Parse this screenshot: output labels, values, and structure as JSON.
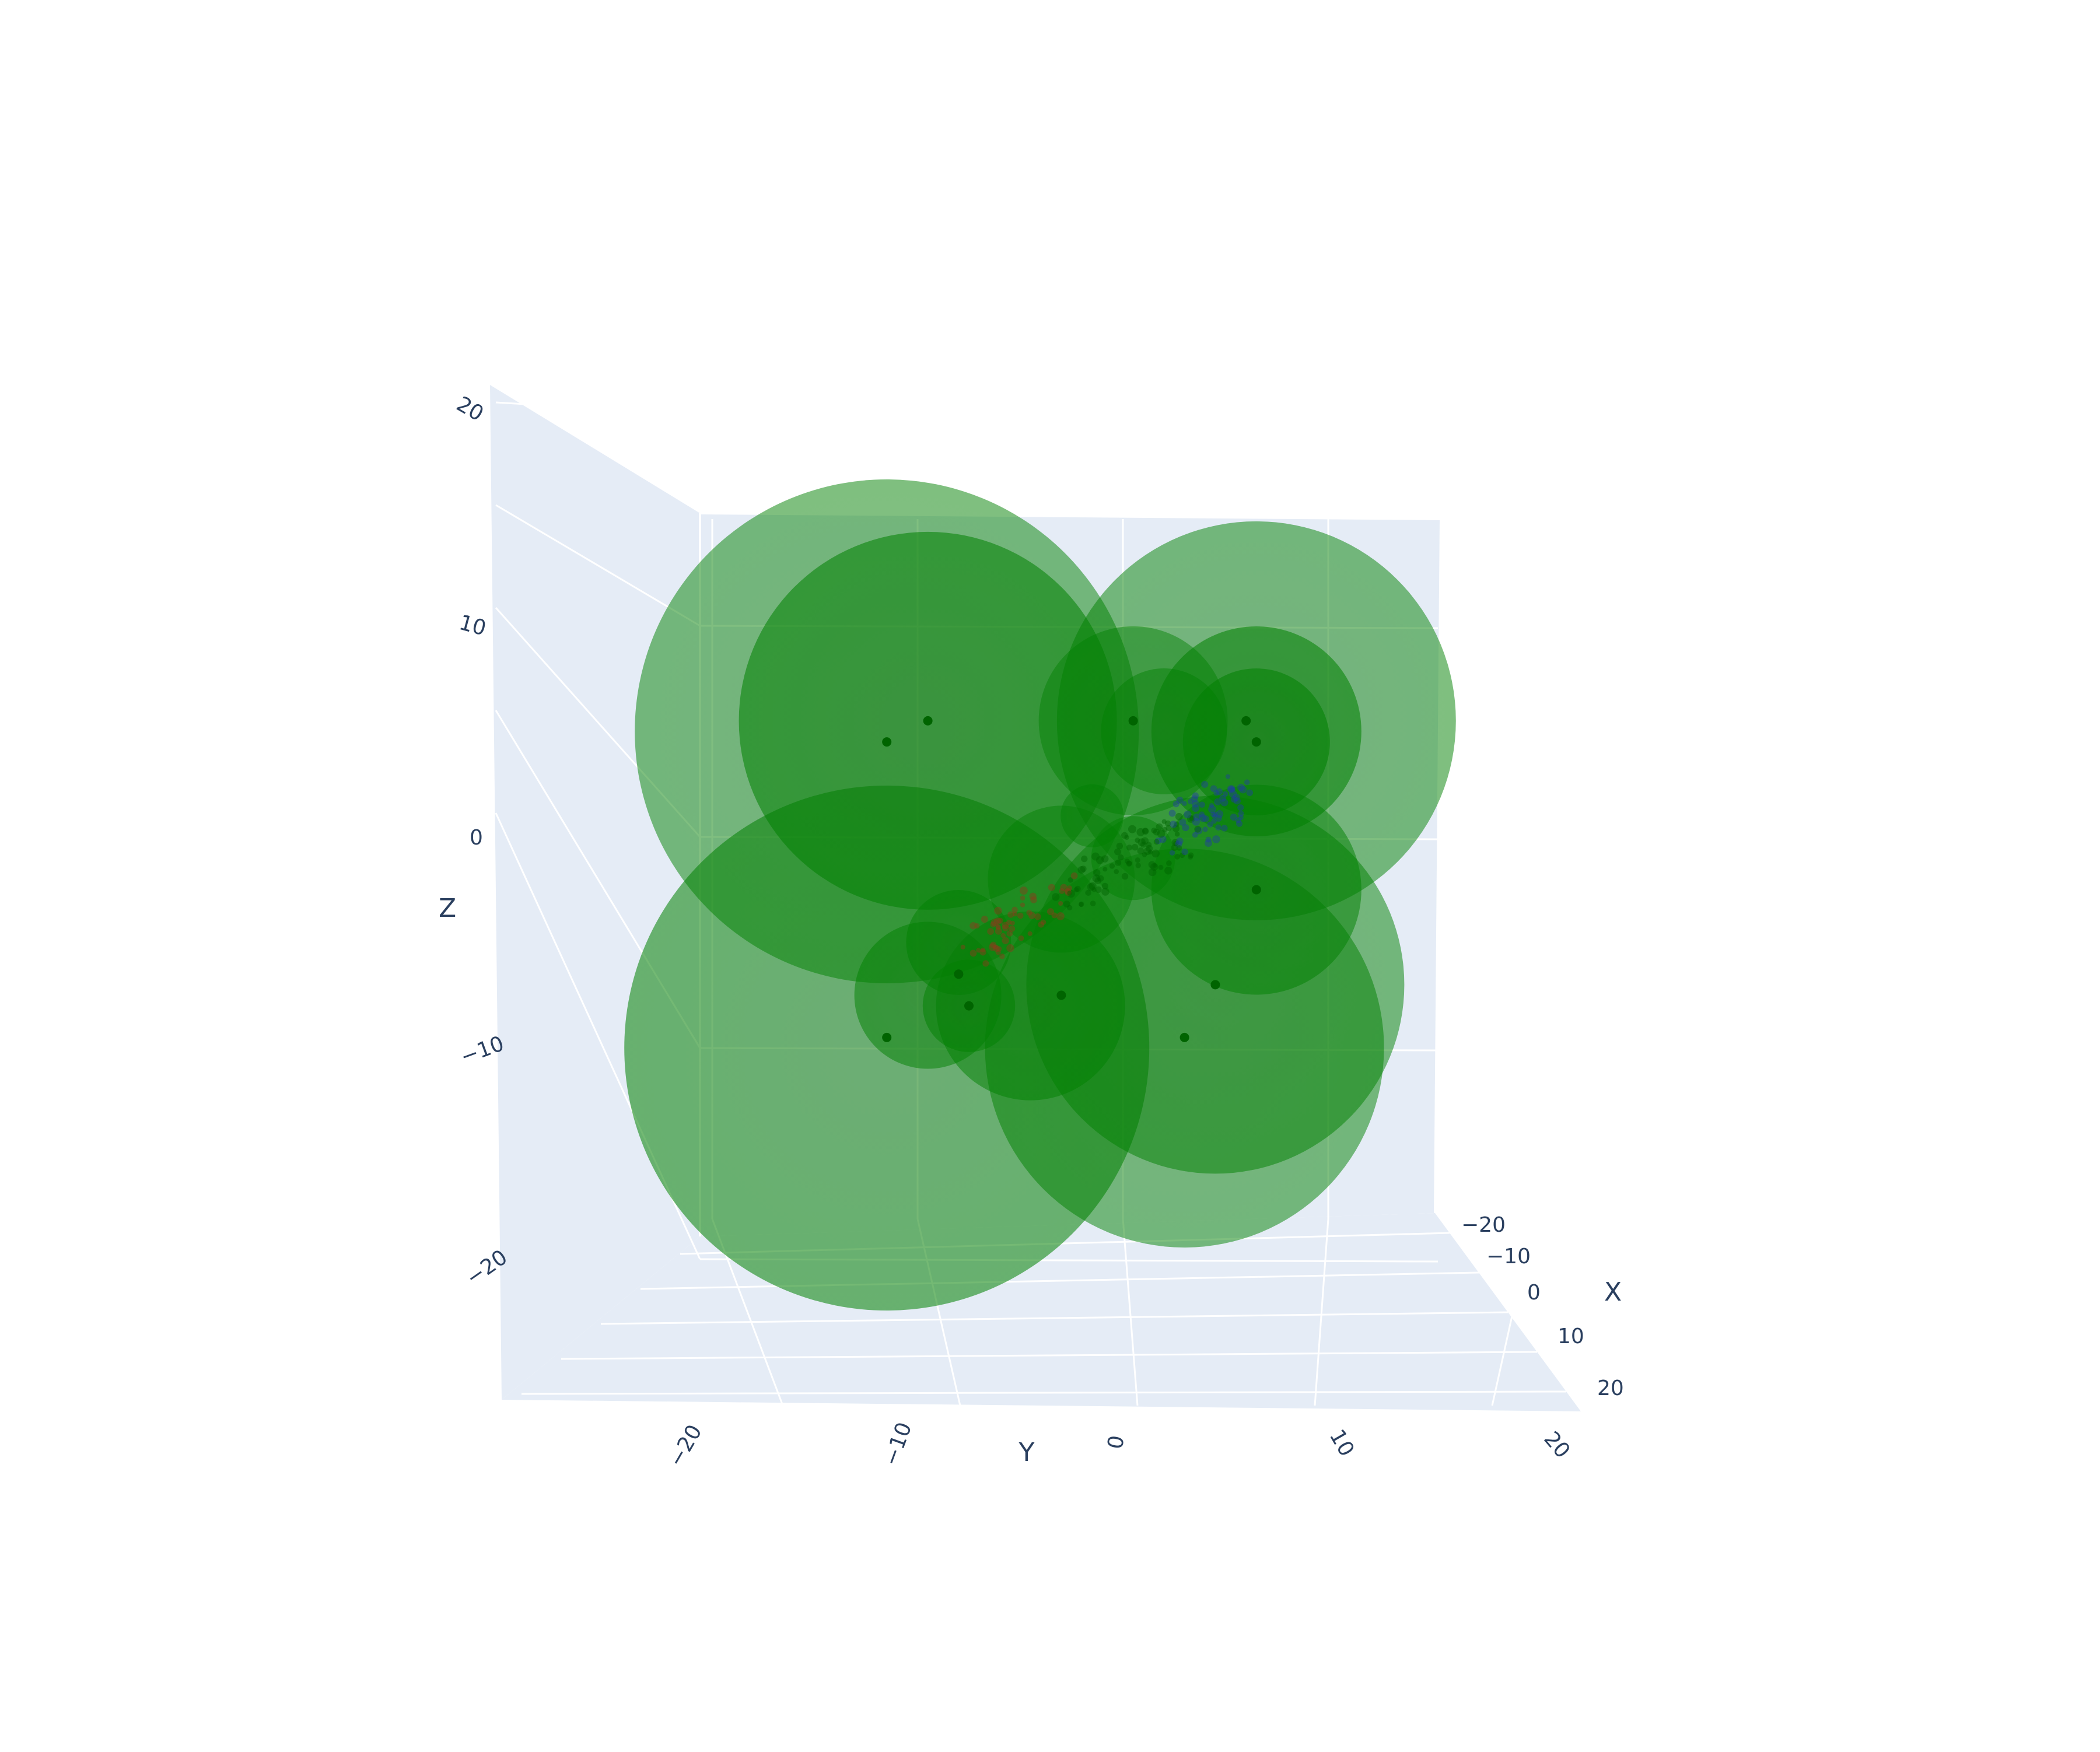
{
  "chart_data": {
    "type": "scatter",
    "mode": "3d",
    "title": "",
    "axes": {
      "x": {
        "label": "X",
        "range": [
          -25,
          25
        ],
        "ticks": [
          "−20",
          "−10",
          "0",
          "10",
          "20"
        ]
      },
      "y": {
        "label": "Y",
        "range": [
          -25,
          25
        ],
        "ticks": [
          "−20",
          "−10",
          "0",
          "10",
          "20"
        ]
      },
      "z": {
        "label": "Z",
        "range": [
          -25,
          25
        ],
        "ticks": [
          "20",
          "10",
          "0",
          "−10",
          "−20"
        ]
      }
    },
    "grid": true,
    "colors": {
      "pane": "#e5ecf6",
      "grid": "#ffffff",
      "text": "#2a3f5f",
      "sphere": "#008000",
      "point": "#006400",
      "cluster_red": "#8b3a1a",
      "cluster_blue": "#1f3fa0"
    },
    "spheres": [
      {
        "y": -11.5,
        "z": 5,
        "r": 12,
        "opacity": 0.5
      },
      {
        "y": -9.5,
        "z": 5.5,
        "r": 9,
        "opacity": 0.55
      },
      {
        "y": 6.5,
        "z": 5.5,
        "r": 9.5,
        "opacity": 0.5
      },
      {
        "y": 6.5,
        "z": 5,
        "r": 5,
        "opacity": 0.55
      },
      {
        "y": 6.5,
        "z": 4.5,
        "r": 3.5,
        "opacity": 0.55
      },
      {
        "y": 0.5,
        "z": 5.5,
        "r": 4.5,
        "opacity": 0.45
      },
      {
        "y": 2,
        "z": 5,
        "r": 3,
        "opacity": 0.45
      },
      {
        "y": -11.5,
        "z": -10,
        "r": 12.5,
        "opacity": 0.55
      },
      {
        "y": 3,
        "z": -10,
        "r": 9.5,
        "opacity": 0.5
      },
      {
        "y": 4.5,
        "z": -7,
        "r": 9,
        "opacity": 0.5
      },
      {
        "y": 6.5,
        "z": -2.5,
        "r": 5,
        "opacity": 0.5
      },
      {
        "y": -4.5,
        "z": -8,
        "r": 4.5,
        "opacity": 0.5
      },
      {
        "y": -3,
        "z": -2,
        "r": 3.5,
        "opacity": 0.45
      },
      {
        "y": -9.5,
        "z": -7.5,
        "r": 3.5,
        "opacity": 0.5
      },
      {
        "y": -8,
        "z": -5,
        "r": 2.5,
        "opacity": 0.5
      },
      {
        "y": -7.5,
        "z": -8,
        "r": 2.2,
        "opacity": 0.5
      },
      {
        "y": 0.5,
        "z": -1,
        "r": 2,
        "opacity": 0.45
      },
      {
        "y": -1.5,
        "z": 1,
        "r": 1.5,
        "opacity": 0.45
      }
    ],
    "points": [
      {
        "y": -11.5,
        "z": 4.5
      },
      {
        "y": -9.5,
        "z": 5.5
      },
      {
        "y": 6,
        "z": 5.5
      },
      {
        "y": 6.5,
        "z": 4.5
      },
      {
        "y": 0.5,
        "z": 5.5
      },
      {
        "y": -11.5,
        "z": -9.5
      },
      {
        "y": 3,
        "z": -9.5
      },
      {
        "y": 4.5,
        "z": -7
      },
      {
        "y": -3,
        "z": -7.5
      },
      {
        "y": -7.5,
        "z": -8
      },
      {
        "y": -8,
        "z": -6.5
      },
      {
        "y": 6.5,
        "z": -2.5
      }
    ]
  }
}
